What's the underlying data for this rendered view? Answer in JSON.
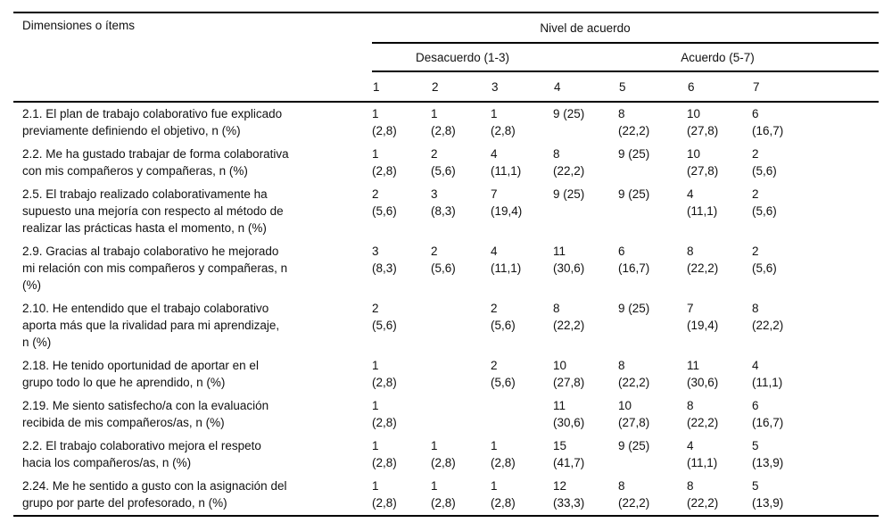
{
  "colors": {
    "background": "#ffffff",
    "text": "#111111",
    "rule": "#000000"
  },
  "table": {
    "col1_header": "Dimensiones o ítems",
    "group_header": "Nivel de acuerdo",
    "subgroup_left": "Desacuerdo (1-3)",
    "subgroup_right": "Acuerdo (5-7)",
    "scale_headers": [
      "1",
      "2",
      "3",
      "4",
      "5",
      "6",
      "7"
    ],
    "rows": [
      {
        "label": "2.1. El plan de trabajo colaborativo fue explicado\npreviamente definiendo el objetivo, n (%)",
        "cells": [
          "1\n(2,8)",
          "1\n(2,8)",
          "1\n(2,8)",
          "9 (25)",
          "8\n(22,2)",
          "10\n(27,8)",
          "6\n(16,7)"
        ]
      },
      {
        "label": "2.2. Me ha gustado trabajar de forma colaborativa\ncon mis compañeros y compañeras, n (%)",
        "cells": [
          "1\n(2,8)",
          "2\n(5,6)",
          "4\n(11,1)",
          "8\n(22,2)",
          "9 (25)",
          "10\n(27,8)",
          "2\n(5,6)"
        ]
      },
      {
        "label": "2.5. El trabajo realizado colaborativamente ha\nsupuesto una mejoría con respecto al método de\nrealizar las prácticas hasta el momento, n (%)",
        "cells": [
          "2\n(5,6)",
          "3\n(8,3)",
          "7\n(19,4)",
          "9 (25)",
          "9 (25)",
          "4\n(11,1)",
          "2\n(5,6)"
        ]
      },
      {
        "label": "2.9. Gracias al trabajo colaborativo he mejorado\nmi relación con mis compañeros y compañeras, n\n(%)",
        "cells": [
          "3\n(8,3)",
          "2\n(5,6)",
          "4\n(11,1)",
          "11\n(30,6)",
          "6\n(16,7)",
          "8\n(22,2)",
          "2\n(5,6)"
        ]
      },
      {
        "label": "2.10. He entendido que el trabajo colaborativo\naporta más que la rivalidad para mi aprendizaje,\nn (%)",
        "cells": [
          "2\n(5,6)",
          "",
          "2\n(5,6)",
          "8\n(22,2)",
          "9 (25)",
          "7\n(19,4)",
          "8\n(22,2)"
        ]
      },
      {
        "label": "2.18. He tenido oportunidad de aportar en el\ngrupo todo lo que he aprendido, n (%)",
        "cells": [
          "1\n(2,8)",
          "",
          "2\n(5,6)",
          "10\n(27,8)",
          "8\n(22,2)",
          "11\n(30,6)",
          "4\n(11,1)"
        ]
      },
      {
        "label": "2.19. Me siento satisfecho/a con la evaluación\nrecibida de mis compañeros/as, n (%)",
        "cells": [
          "1\n(2,8)",
          "",
          "",
          "11\n(30,6)",
          "10\n(27,8)",
          "8\n(22,2)",
          "6\n(16,7)"
        ]
      },
      {
        "label": "2.2. El trabajo colaborativo mejora el respeto\nhacia los compañeros/as, n (%)",
        "cells": [
          "1\n(2,8)",
          "1\n(2,8)",
          "1\n(2,8)",
          "15\n(41,7)",
          "9 (25)",
          "4\n(11,1)",
          "5\n(13,9)"
        ]
      },
      {
        "label": "2.24. Me he sentido a gusto con la asignación del\ngrupo por parte del profesorado, n (%)",
        "cells": [
          "1\n(2,8)",
          "1\n(2,8)",
          "1\n(2,8)",
          "12\n(33,3)",
          "8\n(22,2)",
          "8\n(22,2)",
          "5\n(13,9)"
        ]
      }
    ]
  }
}
